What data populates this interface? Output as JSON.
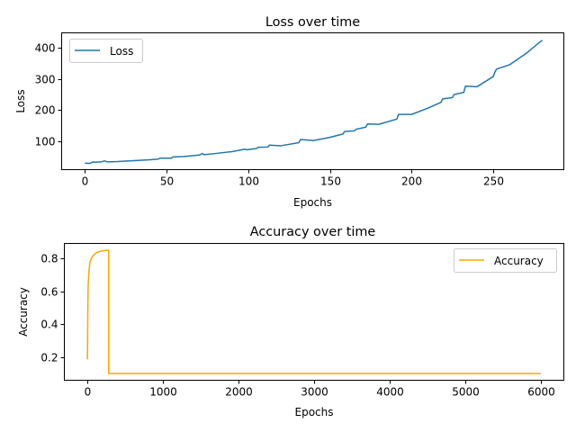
{
  "chart_data": [
    {
      "type": "line",
      "title": "Loss over time",
      "xlabel": "Epochs",
      "ylabel": "Loss",
      "xlim": [
        -13.95,
        292.95
      ],
      "ylim": [
        9.4,
        447.4
      ],
      "xticks": [
        0,
        50,
        100,
        150,
        200,
        250
      ],
      "yticks": [
        100,
        200,
        300,
        400
      ],
      "grid": false,
      "legend": "upper left",
      "series": [
        {
          "name": "Loss",
          "color": "#1f77b4",
          "x": [
            0,
            3,
            5,
            6,
            10,
            12,
            14,
            20,
            30,
            40,
            45,
            46,
            53,
            54,
            60,
            70,
            72,
            73,
            80,
            90,
            98,
            99,
            105,
            106,
            112,
            113,
            120,
            131,
            132,
            140,
            150,
            158,
            159,
            165,
            166,
            172,
            173,
            180,
            191,
            192,
            200,
            210,
            218,
            219,
            225,
            226,
            232,
            233,
            240,
            250,
            251,
            252,
            260,
            270,
            279,
            280
          ],
          "y": [
            29,
            28,
            33,
            32,
            33,
            36,
            33,
            34,
            37,
            40,
            42,
            45,
            45,
            49,
            50,
            55,
            60,
            56,
            60,
            66,
            74,
            72,
            76,
            80,
            81,
            87,
            85,
            95,
            105,
            102,
            112,
            123,
            131,
            133,
            138,
            145,
            155,
            154,
            171,
            186,
            186,
            206,
            225,
            236,
            240,
            250,
            257,
            277,
            275,
            308,
            322,
            332,
            346,
            382,
            421,
            425
          ]
        }
      ]
    },
    {
      "type": "line",
      "title": "Accuracy over time",
      "xlabel": "Epochs",
      "ylabel": "Accuracy",
      "xlim": [
        -300,
        6300
      ],
      "ylim": [
        0.062,
        0.888
      ],
      "xticks": [
        0,
        1000,
        2000,
        3000,
        4000,
        5000,
        6000
      ],
      "yticks": [
        0.2,
        0.4,
        0.6,
        0.8
      ],
      "grid": false,
      "legend": "upper right",
      "series": [
        {
          "name": "Accuracy",
          "color": "#ffa500",
          "x": [
            0,
            5,
            10,
            20,
            30,
            50,
            80,
            120,
            160,
            200,
            240,
            270,
            280,
            281,
            300,
            1000,
            2000,
            3000,
            4000,
            5000,
            6000
          ],
          "y": [
            0.186,
            0.5,
            0.65,
            0.72,
            0.77,
            0.8,
            0.82,
            0.835,
            0.842,
            0.846,
            0.848,
            0.849,
            0.85,
            0.1,
            0.1,
            0.1,
            0.1,
            0.1,
            0.1,
            0.1,
            0.1
          ]
        }
      ]
    }
  ]
}
